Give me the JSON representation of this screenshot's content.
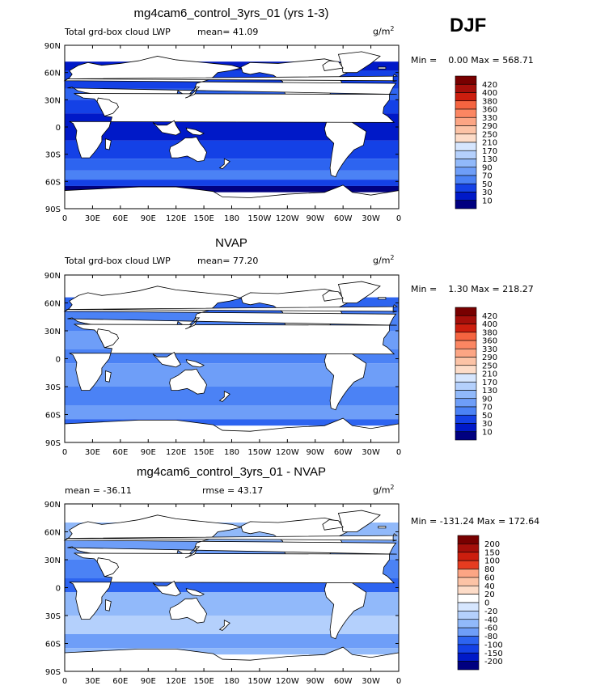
{
  "season": "DJF",
  "units": "g/m",
  "units_sup": "2",
  "colors": {
    "blue_scale": [
      "#000080",
      "#0019c8",
      "#1441e6",
      "#2d64f0",
      "#4b82f5",
      "#6e9ef8",
      "#91b9fa",
      "#b4d0fc",
      "#d6e6fe",
      "#fdf1e8",
      "#fddcc8",
      "#fcc3a6",
      "#fca584",
      "#fb8662",
      "#f56440",
      "#e63c20",
      "#cc1e0e",
      "#a50f0a",
      "#780000"
    ],
    "diff_scale": [
      "#000080",
      "#0019c8",
      "#1441e6",
      "#2d64f0",
      "#4b82f5",
      "#6e9ef8",
      "#91b9fa",
      "#b4d0fc",
      "#d6e6fe",
      "#ffffff",
      "#fddcc8",
      "#fcc3a6",
      "#fca584",
      "#f56440",
      "#e63c20",
      "#cc1e0e",
      "#a50f0a",
      "#780000"
    ]
  },
  "chart_data": [
    {
      "type": "heatmap",
      "title": "mg4cam6_control_3yrs_01 (yrs 1-3)",
      "subtitle": "Total grd-box cloud LWP",
      "mean_label": "mean=",
      "mean": "41.09",
      "min_label": "Min =",
      "min": "0.00",
      "max_label": "Max =",
      "max": "568.71",
      "xticks": [
        "0",
        "30E",
        "60E",
        "90E",
        "120E",
        "150E",
        "180",
        "150W",
        "120W",
        "90W",
        "60W",
        "30W",
        "0"
      ],
      "yticks": [
        "90N",
        "60N",
        "30N",
        "0",
        "30S",
        "60S",
        "90S"
      ],
      "colorbar": [
        "420",
        "400",
        "380",
        "360",
        "330",
        "290",
        "250",
        "210",
        "170",
        "130",
        "90",
        "70",
        "50",
        "30",
        "10"
      ]
    },
    {
      "type": "heatmap",
      "title": "NVAP",
      "subtitle": "Total grd-box cloud LWP",
      "mean_label": "mean=",
      "mean": "77.20",
      "min_label": "Min =",
      "min": "1.30",
      "max_label": "Max =",
      "max": "218.27",
      "xticks": [
        "0",
        "30E",
        "60E",
        "90E",
        "120E",
        "150E",
        "180",
        "150W",
        "120W",
        "90W",
        "60W",
        "30W",
        "0"
      ],
      "yticks": [
        "90N",
        "60N",
        "30N",
        "0",
        "30S",
        "60S",
        "90S"
      ],
      "colorbar": [
        "420",
        "400",
        "380",
        "360",
        "330",
        "290",
        "250",
        "210",
        "170",
        "130",
        "90",
        "70",
        "50",
        "30",
        "10"
      ]
    },
    {
      "type": "heatmap",
      "title": "mg4cam6_control_3yrs_01 - NVAP",
      "mean_label": "mean =",
      "mean": "-36.11",
      "rmse_label": "rmse =",
      "rmse": "43.17",
      "min_label": "Min =",
      "min": "-131.24",
      "max_label": "Max =",
      "max": "172.64",
      "xticks": [
        "0",
        "30E",
        "60E",
        "90E",
        "120E",
        "150E",
        "180",
        "150W",
        "120W",
        "90W",
        "60W",
        "30W",
        "0"
      ],
      "yticks": [
        "90N",
        "60N",
        "30N",
        "0",
        "30S",
        "60S",
        "90S"
      ],
      "colorbar": [
        "200",
        "150",
        "100",
        "80",
        "60",
        "40",
        "20",
        "0",
        "-20",
        "-40",
        "-60",
        "-80",
        "-100",
        "-150",
        "-200"
      ]
    }
  ]
}
